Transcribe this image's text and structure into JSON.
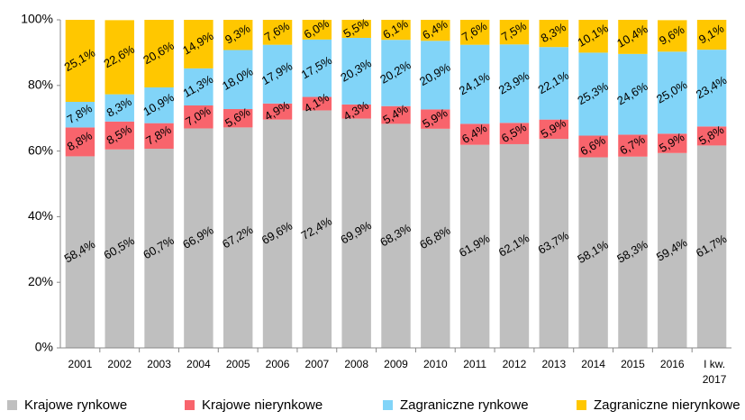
{
  "chart_data": {
    "type": "stacked_bar",
    "categories": [
      "2001",
      "2002",
      "2003",
      "2004",
      "2005",
      "2006",
      "2007",
      "2008",
      "2009",
      "2010",
      "2011",
      "2012",
      "2013",
      "2014",
      "2015",
      "2016",
      "I kw. 2017"
    ],
    "ylim": [
      0,
      100
    ],
    "yticks": [
      {
        "value": 0,
        "label": "0%"
      },
      {
        "value": 20,
        "label": "20%"
      },
      {
        "value": 40,
        "label": "40%"
      },
      {
        "value": 60,
        "label": "60%"
      },
      {
        "value": 80,
        "label": "80%"
      },
      {
        "value": 100,
        "label": "100%"
      }
    ],
    "legend": "bottom",
    "series": [
      {
        "name": "Krajowe rynkowe",
        "color": "#bfbfbf",
        "values": [
          58.4,
          60.5,
          60.7,
          66.9,
          67.2,
          69.6,
          72.4,
          69.9,
          68.3,
          66.8,
          61.9,
          62.1,
          63.7,
          58.1,
          58.3,
          59.4,
          61.7
        ],
        "value_labels": [
          "58,4%",
          "60,5%",
          "60,7%",
          "66,9%",
          "67,2%",
          "69,6%",
          "72,4%",
          "69,9%",
          "68,3%",
          "66,8%",
          "61,9%",
          "62,1%",
          "63,7%",
          "58,1%",
          "58,3%",
          "59,4%",
          "61,7%"
        ]
      },
      {
        "name": "Krajowe nierynkowe",
        "color": "#f8646c",
        "values": [
          8.8,
          8.5,
          7.8,
          7.0,
          5.6,
          4.9,
          4.1,
          4.3,
          5.4,
          5.9,
          6.4,
          6.5,
          5.9,
          6.6,
          6.7,
          5.9,
          5.8
        ],
        "value_labels": [
          "8,8%",
          "8,5%",
          "7,8%",
          "7,0%",
          "5,6%",
          "4,9%",
          "4,1%",
          "4,3%",
          "5,4%",
          "5,9%",
          "6,4%",
          "6,5%",
          "5,9%",
          "6,6%",
          "6,7%",
          "5,9%",
          "5,8%"
        ]
      },
      {
        "name": "Zagraniczne rynkowe",
        "color": "#81d4f8",
        "values": [
          7.8,
          8.3,
          10.9,
          11.3,
          18.0,
          17.9,
          17.5,
          20.3,
          20.2,
          20.9,
          24.1,
          23.9,
          22.1,
          25.3,
          24.6,
          25.0,
          23.4
        ],
        "value_labels": [
          "7,8%",
          "8,3%",
          "10,9%",
          "11,3%",
          "18,0%",
          "17,9%",
          "17,5%",
          "20,3%",
          "20,2%",
          "20,9%",
          "24,1%",
          "23,9%",
          "22,1%",
          "25,3%",
          "24,6%",
          "25,0%",
          "23,4%"
        ]
      },
      {
        "name": "Zagraniczne nierynkowe",
        "color": "#ffc700",
        "values": [
          25.1,
          22.6,
          20.6,
          14.9,
          9.3,
          7.6,
          6.0,
          5.5,
          6.1,
          6.4,
          7.6,
          7.5,
          8.3,
          10.1,
          10.4,
          9.6,
          9.1
        ],
        "value_labels": [
          "25,1%",
          "22,6%",
          "20,6%",
          "14,9%",
          "9,3%",
          "7,6%",
          "6,0%",
          "5,5%",
          "6,1%",
          "6,4%",
          "7,6%",
          "7,5%",
          "8,3%",
          "10,1%",
          "10,4%",
          "9,6%",
          "9,1%"
        ]
      }
    ]
  }
}
